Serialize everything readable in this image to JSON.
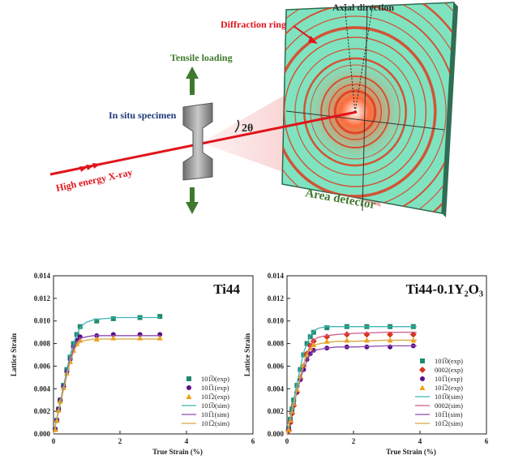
{
  "diagram": {
    "axial_direction": "Axial direction",
    "diffraction_ring": "Diffraction ring",
    "tensile_loading": "Tensile loading",
    "in_situ_specimen": "In situ specimen",
    "two_theta": "2θ",
    "xray": "High energy X-ray",
    "area_detector": "Area detector",
    "colors": {
      "beam": "#e0141b",
      "detector_bg": "#7fe3c0",
      "ring": "#e23a1c",
      "arrow": "#3e7a2e",
      "specimen": "#8c8c8c"
    }
  },
  "chart_data": [
    {
      "type": "scatter",
      "title": "Ti44",
      "xlabel": "True Strain (%)",
      "ylabel": "Lattice Strain",
      "xlim": [
        0,
        6
      ],
      "ylim": [
        0,
        0.014
      ],
      "xticks": [
        "0",
        "2",
        "4",
        "6"
      ],
      "yticks": [
        "0.000",
        "0.002",
        "0.004",
        "0.006",
        "0.008",
        "0.010",
        "0.012",
        "0.014"
      ],
      "legend_position": "bottom-right",
      "series": [
        {
          "name": "101̅0(exp)",
          "marker": "square",
          "color": "#1f8a6d",
          "x": [
            0.05,
            0.1,
            0.15,
            0.2,
            0.3,
            0.4,
            0.5,
            0.6,
            0.7,
            0.8,
            1.3,
            1.8,
            2.6,
            3.2
          ],
          "y": [
            0.0004,
            0.0012,
            0.0022,
            0.003,
            0.0043,
            0.0057,
            0.0068,
            0.008,
            0.0088,
            0.0095,
            0.01,
            0.0102,
            0.0103,
            0.0104
          ]
        },
        {
          "name": "101̅1(exp)",
          "marker": "circle",
          "color": "#5b0f8a",
          "x": [
            0.05,
            0.1,
            0.15,
            0.2,
            0.3,
            0.4,
            0.5,
            0.6,
            0.7,
            0.8,
            1.3,
            1.8,
            2.6,
            3.2
          ],
          "y": [
            0.0004,
            0.0012,
            0.0022,
            0.003,
            0.0042,
            0.0055,
            0.0066,
            0.0077,
            0.0083,
            0.0086,
            0.0087,
            0.0088,
            0.0088,
            0.0088
          ]
        },
        {
          "name": "101̅2(exp)",
          "marker": "triangle",
          "color": "#f2a20c",
          "x": [
            0.05,
            0.1,
            0.15,
            0.2,
            0.3,
            0.4,
            0.5,
            0.6,
            0.7,
            0.8,
            1.3,
            1.8,
            2.6,
            3.2
          ],
          "y": [
            0.0004,
            0.0012,
            0.0021,
            0.0029,
            0.0041,
            0.0054,
            0.0064,
            0.0074,
            0.008,
            0.0083,
            0.0084,
            0.0085,
            0.0085,
            0.0085
          ]
        },
        {
          "name": "101̅0(sim)",
          "line": true,
          "color": "#3fb5b5",
          "x": [
            0,
            0.3,
            0.5,
            0.7,
            0.8,
            0.9,
            1.0,
            1.2,
            1.5,
            2.0,
            2.5,
            3.2
          ],
          "y": [
            0,
            0.0042,
            0.007,
            0.0088,
            0.0094,
            0.0097,
            0.0099,
            0.0101,
            0.0102,
            0.0103,
            0.0103,
            0.0103
          ]
        },
        {
          "name": "101̅1(sim)",
          "line": true,
          "color": "#8e4bb0",
          "x": [
            0,
            0.3,
            0.5,
            0.65,
            0.75,
            0.85,
            1.0,
            1.2,
            1.5,
            2.0,
            2.5,
            3.2
          ],
          "y": [
            0,
            0.004,
            0.0066,
            0.0079,
            0.0083,
            0.0085,
            0.0086,
            0.0087,
            0.0087,
            0.0087,
            0.0087,
            0.0087
          ]
        },
        {
          "name": "101̅2(sim)",
          "line": true,
          "color": "#d9a441",
          "x": [
            0,
            0.3,
            0.5,
            0.65,
            0.75,
            0.85,
            1.0,
            1.2,
            1.5,
            2.0,
            2.5,
            3.2
          ],
          "y": [
            0,
            0.0039,
            0.0064,
            0.0076,
            0.008,
            0.0082,
            0.0083,
            0.0084,
            0.0084,
            0.0084,
            0.0084,
            0.0084
          ]
        }
      ]
    },
    {
      "type": "scatter",
      "title": "Ti44-0.1Y₂O₃",
      "xlabel": "True Strain (%)",
      "ylabel": "Lattice Strain",
      "xlim": [
        0,
        6
      ],
      "ylim": [
        0,
        0.014
      ],
      "xticks": [
        "0",
        "2",
        "4",
        "6"
      ],
      "yticks": [
        "0.000",
        "0.002",
        "0.004",
        "0.006",
        "0.008",
        "0.010",
        "0.012",
        "0.014"
      ],
      "legend_position": "bottom-right",
      "series": [
        {
          "name": "101̅0(exp)",
          "marker": "square",
          "color": "#1f8a6d",
          "x": [
            0.05,
            0.1,
            0.15,
            0.2,
            0.3,
            0.4,
            0.5,
            0.6,
            0.7,
            0.8,
            1.2,
            1.8,
            2.4,
            3.1,
            3.8
          ],
          "y": [
            0.0005,
            0.0013,
            0.0022,
            0.003,
            0.0043,
            0.0057,
            0.007,
            0.008,
            0.0086,
            0.009,
            0.0094,
            0.0095,
            0.0095,
            0.0095,
            0.0095
          ]
        },
        {
          "name": "0002(exp)",
          "marker": "diamond",
          "color": "#d8321c",
          "x": [
            0.05,
            0.1,
            0.15,
            0.2,
            0.3,
            0.4,
            0.5,
            0.6,
            0.7,
            0.8,
            1.2,
            1.8,
            2.4,
            3.1,
            3.8
          ],
          "y": [
            0.0003,
            0.001,
            0.0018,
            0.0025,
            0.0037,
            0.0049,
            0.006,
            0.0071,
            0.0078,
            0.0082,
            0.0086,
            0.0088,
            0.0088,
            0.0088,
            0.0088
          ]
        },
        {
          "name": "101̅1(exp)",
          "marker": "circle",
          "color": "#5b0f8a",
          "x": [
            0.05,
            0.1,
            0.15,
            0.2,
            0.3,
            0.4,
            0.5,
            0.6,
            0.7,
            0.8,
            1.2,
            1.8,
            2.4,
            3.1,
            3.8
          ],
          "y": [
            0.0004,
            0.0011,
            0.0019,
            0.0026,
            0.0037,
            0.0048,
            0.0057,
            0.0066,
            0.0071,
            0.0074,
            0.0076,
            0.0077,
            0.0077,
            0.0077,
            0.0078
          ]
        },
        {
          "name": "101̅2(exp)",
          "marker": "triangle",
          "color": "#f2a20c",
          "x": [
            0.05,
            0.1,
            0.15,
            0.2,
            0.3,
            0.4,
            0.5,
            0.6,
            0.7,
            0.8,
            1.2,
            1.8,
            2.4,
            3.1,
            3.8
          ],
          "y": [
            0.0004,
            0.0012,
            0.002,
            0.0027,
            0.0039,
            0.0051,
            0.0061,
            0.007,
            0.0076,
            0.0079,
            0.0082,
            0.0083,
            0.0083,
            0.0083,
            0.0083
          ]
        },
        {
          "name": "101̅0(sim)",
          "line": true,
          "color": "#3fb5b5",
          "x": [
            0,
            0.3,
            0.5,
            0.7,
            0.8,
            0.9,
            1.0,
            1.2,
            1.5,
            2.0,
            3.0,
            3.9
          ],
          "y": [
            0,
            0.0045,
            0.0072,
            0.0087,
            0.0091,
            0.0093,
            0.0094,
            0.0095,
            0.0095,
            0.0095,
            0.0095,
            0.0095
          ]
        },
        {
          "name": "0002(sim)",
          "line": true,
          "color": "#d05a8a",
          "x": [
            0,
            0.3,
            0.5,
            0.7,
            0.8,
            0.9,
            1.0,
            1.2,
            1.5,
            2.0,
            3.0,
            3.9
          ],
          "y": [
            0,
            0.0038,
            0.0062,
            0.0078,
            0.0083,
            0.0085,
            0.0086,
            0.0087,
            0.0088,
            0.0089,
            0.009,
            0.009
          ]
        },
        {
          "name": "101̅1(sim)",
          "line": true,
          "color": "#8e4bb0",
          "x": [
            0,
            0.3,
            0.5,
            0.65,
            0.75,
            0.85,
            1.0,
            1.2,
            1.5,
            2.0,
            3.0,
            3.9
          ],
          "y": [
            0,
            0.0038,
            0.0058,
            0.0068,
            0.0072,
            0.0074,
            0.0075,
            0.0076,
            0.0077,
            0.0077,
            0.0078,
            0.0078
          ]
        },
        {
          "name": "101̅2(sim)",
          "line": true,
          "color": "#d9a441",
          "x": [
            0,
            0.3,
            0.5,
            0.65,
            0.75,
            0.85,
            1.0,
            1.2,
            1.5,
            2.0,
            3.0,
            3.9
          ],
          "y": [
            0,
            0.0039,
            0.0062,
            0.0073,
            0.0077,
            0.0079,
            0.008,
            0.0081,
            0.0082,
            0.0082,
            0.0083,
            0.0083
          ]
        }
      ]
    }
  ]
}
